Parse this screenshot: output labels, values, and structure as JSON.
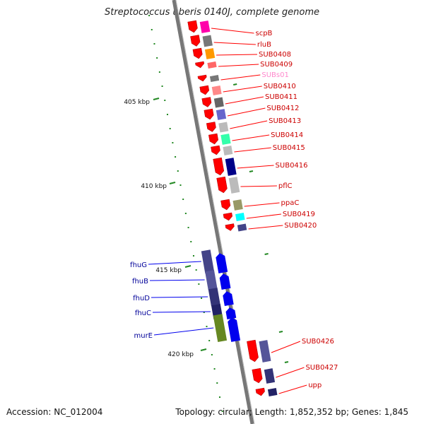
{
  "title": "Streptococcus uberis 0140J, complete genome",
  "accession": "Accession: NC_012004",
  "topology": "Topology: circular; Length: 1,852,352 bp; Genes: 1,845",
  "colors": {
    "forward_gene": "#ff0000",
    "reverse_gene": "#0000ee",
    "forward_label": "#cc0000",
    "reverse_label": "#000099",
    "rna_label": "#ff88cc",
    "tick": "#228822",
    "backbone": "#888888"
  },
  "axis": {
    "unit": "kbp",
    "ticks": [
      {
        "label": "405 kbp",
        "major": true
      },
      {
        "label": "410 kbp",
        "major": true
      },
      {
        "label": "415 kbp",
        "major": true
      },
      {
        "label": "420 kbp",
        "major": true
      }
    ]
  },
  "genes_forward": [
    {
      "label": "scpB",
      "type": "gene"
    },
    {
      "label": "rluB",
      "type": "gene"
    },
    {
      "label": "SUB0408",
      "type": "gene"
    },
    {
      "label": "SUB0409",
      "type": "gene"
    },
    {
      "label": "SUBs01",
      "type": "rna"
    },
    {
      "label": "SUB0410",
      "type": "gene"
    },
    {
      "label": "SUB0411",
      "type": "gene"
    },
    {
      "label": "SUB0412",
      "type": "gene"
    },
    {
      "label": "SUB0413",
      "type": "gene"
    },
    {
      "label": "SUB0414",
      "type": "gene"
    },
    {
      "label": "SUB0415",
      "type": "gene"
    },
    {
      "label": "SUB0416",
      "type": "gene"
    },
    {
      "label": "pflC",
      "type": "gene"
    },
    {
      "label": "ppaC",
      "type": "gene"
    },
    {
      "label": "SUB0419",
      "type": "gene"
    },
    {
      "label": "SUB0420",
      "type": "gene"
    },
    {
      "label": "SUB0426",
      "type": "gene"
    },
    {
      "label": "SUB0427",
      "type": "gene"
    },
    {
      "label": "upp",
      "type": "gene"
    }
  ],
  "genes_reverse": [
    {
      "label": "fhuG"
    },
    {
      "label": "fhuB"
    },
    {
      "label": "fhuD"
    },
    {
      "label": "fhuC"
    },
    {
      "label": "murE"
    }
  ],
  "function_colors": [
    "#ff00aa",
    "#777777",
    "#ff9900",
    "#ff6666",
    "#777777",
    "#ff8888",
    "#666666",
    "#6666cc",
    "#bbbbbb",
    "#33ffaa",
    "#bbbbbb",
    "#000088",
    "#bbbbbb",
    "#999966",
    "#00ffff",
    "#444488",
    "#555599",
    "#333377",
    "#222266",
    "#668822",
    "#bbbbbb",
    "#4477aa",
    "#00ccff"
  ]
}
